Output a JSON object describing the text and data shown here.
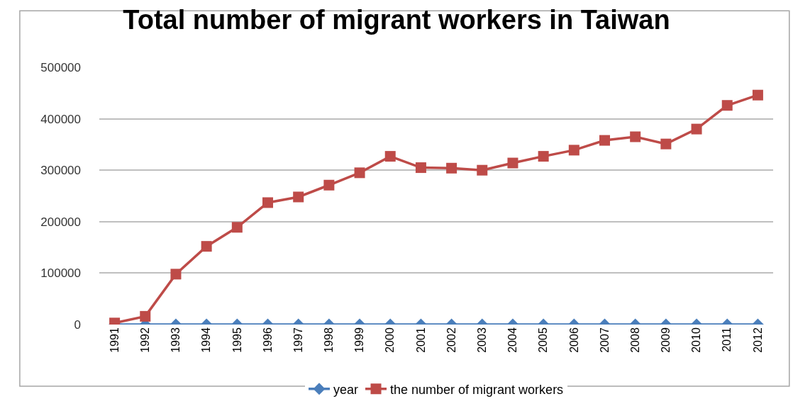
{
  "chart_data": {
    "type": "line",
    "title": "Total number of migrant workers in Taiwan",
    "categories": [
      "1991",
      "1992",
      "1993",
      "1994",
      "1995",
      "1996",
      "1997",
      "1998",
      "1999",
      "2000",
      "2001",
      "2002",
      "2003",
      "2004",
      "2005",
      "2006",
      "2007",
      "2008",
      "2009",
      "2010",
      "2011",
      "2012"
    ],
    "series": [
      {
        "name": "year",
        "color": "#4a7ebb",
        "marker": "diamond",
        "values": [
          0,
          0,
          0,
          0,
          0,
          0,
          0,
          0,
          0,
          0,
          0,
          0,
          0,
          0,
          0,
          0,
          0,
          0,
          0,
          0,
          0,
          0
        ]
      },
      {
        "name": "the number of migrant workers",
        "color": "#be4b48",
        "marker": "square",
        "values": [
          3000,
          16000,
          98000,
          152000,
          189000,
          237000,
          248000,
          271000,
          295000,
          327000,
          305000,
          304000,
          300000,
          314000,
          327000,
          339000,
          358000,
          365000,
          351000,
          380000,
          426000,
          446000
        ]
      }
    ],
    "ylim": [
      0,
      500000
    ],
    "yticks": [
      0,
      100000,
      200000,
      300000,
      400000,
      500000
    ],
    "grid": "y",
    "legend": "bottom"
  }
}
